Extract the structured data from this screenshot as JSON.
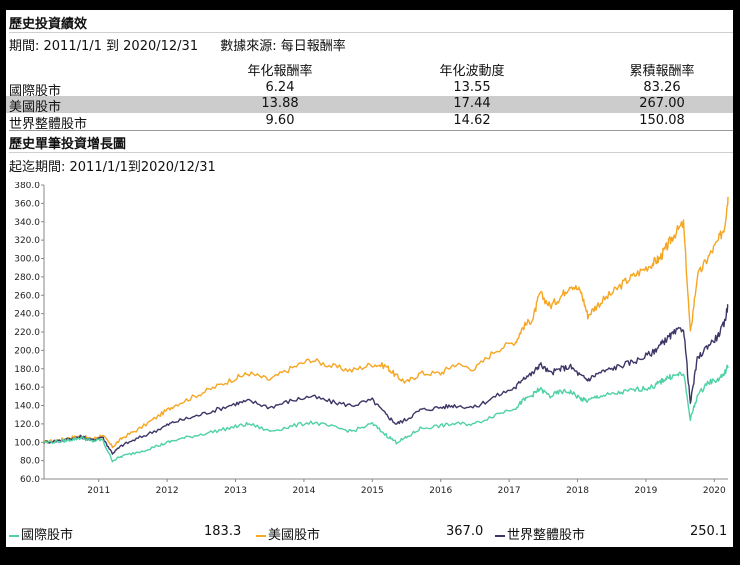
{
  "performance": {
    "title": "歷史投資績效",
    "period_label": "期間: 2011/1/1 到 2020/12/31",
    "source_label": "數據來源: 每日報酬率",
    "columns": [
      "年化報酬率",
      "年化波動度",
      "累積報酬率"
    ],
    "rows": [
      {
        "name": "國際股市",
        "annual_return": "6.24",
        "volatility": "13.55",
        "cumulative": "83.26"
      },
      {
        "name": "美國股市",
        "annual_return": "13.88",
        "volatility": "17.44",
        "cumulative": "267.00"
      },
      {
        "name": "世界整體股市",
        "annual_return": "9.60",
        "volatility": "14.62",
        "cumulative": "150.08"
      }
    ]
  },
  "growth": {
    "title": "歷史單筆投資增長圖",
    "period_label": "起迄期間: 2011/1/1到2020/12/31"
  },
  "colors": {
    "international": "#4fd1a5",
    "us": "#f5a623",
    "world": "#3d3566",
    "highlight_row": "#cccccc"
  },
  "legend": [
    {
      "label": "國際股市",
      "value": "183.3",
      "color": "#4fd1a5"
    },
    {
      "label": "美國股市",
      "value": "367.0",
      "color": "#f5a623"
    },
    {
      "label": "世界整體股市",
      "value": "250.1",
      "color": "#3d3566"
    }
  ],
  "chart_data": {
    "type": "line",
    "title": "歷史單筆投資增長圖",
    "xlabel": "",
    "ylabel": "",
    "ylim": [
      60,
      380
    ],
    "y_ticks": [
      "60.0",
      "80.0",
      "100.0",
      "120.0",
      "140.0",
      "160.0",
      "180.0",
      "200.0",
      "220.0",
      "240.0",
      "260.0",
      "280.0",
      "300.0",
      "320.0",
      "340.0",
      "360.0",
      "380.0"
    ],
    "x_ticks": [
      "2011",
      "2012",
      "2013",
      "2014",
      "2015",
      "2016",
      "2017",
      "2018",
      "2019",
      "2020"
    ],
    "x_range": [
      2010.0,
      2020.0
    ],
    "series": [
      {
        "name": "美國股市",
        "color": "#f5a623",
        "x": [
          2010.0,
          2010.25,
          2010.4,
          2010.55,
          2010.7,
          2010.85,
          2011.0,
          2011.15,
          2011.4,
          2011.7,
          2011.9,
          2012.2,
          2012.5,
          2012.8,
          2013.0,
          2013.3,
          2013.6,
          2013.9,
          2014.2,
          2014.5,
          2014.8,
          2015.0,
          2015.15,
          2015.3,
          2015.5,
          2015.8,
          2016.0,
          2016.3,
          2016.6,
          2016.9,
          2017.0,
          2017.15,
          2017.25,
          2017.4,
          2017.55,
          2017.7,
          2017.85,
          2017.95,
          2018.1,
          2018.3,
          2018.5,
          2018.7,
          2018.9,
          2019.0,
          2019.1,
          2019.2,
          2019.35,
          2019.45,
          2019.55,
          2019.7,
          2019.85,
          2019.95,
          2020.0
        ],
        "values": [
          100,
          103,
          105,
          107,
          103,
          108,
          95,
          105,
          115,
          130,
          140,
          150,
          160,
          170,
          175,
          168,
          180,
          190,
          183,
          178,
          185,
          183,
          172,
          165,
          175,
          175,
          185,
          180,
          200,
          210,
          225,
          235,
          262,
          248,
          258,
          272,
          264,
          238,
          250,
          262,
          275,
          285,
          295,
          300,
          312,
          325,
          338,
          218,
          280,
          300,
          318,
          335,
          367
        ]
      },
      {
        "name": "世界整體股市",
        "color": "#3d3566",
        "x": [
          2010.0,
          2010.25,
          2010.4,
          2010.55,
          2010.7,
          2010.85,
          2011.0,
          2011.15,
          2011.4,
          2011.7,
          2011.9,
          2012.2,
          2012.5,
          2012.8,
          2013.0,
          2013.3,
          2013.6,
          2013.9,
          2014.2,
          2014.5,
          2014.8,
          2015.0,
          2015.15,
          2015.3,
          2015.5,
          2015.8,
          2016.0,
          2016.3,
          2016.6,
          2016.9,
          2017.0,
          2017.15,
          2017.25,
          2017.4,
          2017.55,
          2017.7,
          2017.85,
          2017.95,
          2018.1,
          2018.3,
          2018.5,
          2018.7,
          2018.9,
          2019.0,
          2019.1,
          2019.2,
          2019.35,
          2019.45,
          2019.55,
          2019.7,
          2019.85,
          2019.95,
          2020.0
        ],
        "values": [
          100,
          102,
          104,
          106,
          102,
          106,
          88,
          97,
          105,
          115,
          122,
          128,
          135,
          142,
          145,
          138,
          145,
          150,
          144,
          140,
          146,
          130,
          120,
          125,
          135,
          138,
          140,
          138,
          150,
          160,
          170,
          175,
          185,
          175,
          180,
          182,
          172,
          168,
          175,
          180,
          185,
          190,
          198,
          205,
          212,
          218,
          225,
          142,
          190,
          205,
          215,
          230,
          250
        ]
      },
      {
        "name": "國際股市",
        "color": "#4fd1a5",
        "x": [
          2010.0,
          2010.25,
          2010.4,
          2010.55,
          2010.7,
          2010.85,
          2011.0,
          2011.15,
          2011.4,
          2011.7,
          2011.9,
          2012.2,
          2012.5,
          2012.8,
          2013.0,
          2013.3,
          2013.6,
          2013.9,
          2014.2,
          2014.5,
          2014.8,
          2015.0,
          2015.15,
          2015.3,
          2015.5,
          2015.8,
          2016.0,
          2016.3,
          2016.6,
          2016.9,
          2017.0,
          2017.15,
          2017.25,
          2017.4,
          2017.55,
          2017.7,
          2017.85,
          2017.95,
          2018.1,
          2018.3,
          2018.5,
          2018.7,
          2018.9,
          2019.0,
          2019.1,
          2019.2,
          2019.35,
          2019.45,
          2019.55,
          2019.7,
          2019.85,
          2019.95,
          2020.0
        ],
        "values": [
          100,
          101,
          103,
          105,
          101,
          103,
          80,
          85,
          90,
          97,
          102,
          107,
          112,
          117,
          120,
          112,
          117,
          122,
          117,
          112,
          120,
          108,
          100,
          105,
          115,
          118,
          120,
          120,
          130,
          138,
          145,
          152,
          158,
          150,
          155,
          155,
          147,
          145,
          150,
          152,
          155,
          158,
          160,
          165,
          170,
          172,
          175,
          125,
          150,
          165,
          168,
          175,
          183
        ]
      }
    ]
  }
}
